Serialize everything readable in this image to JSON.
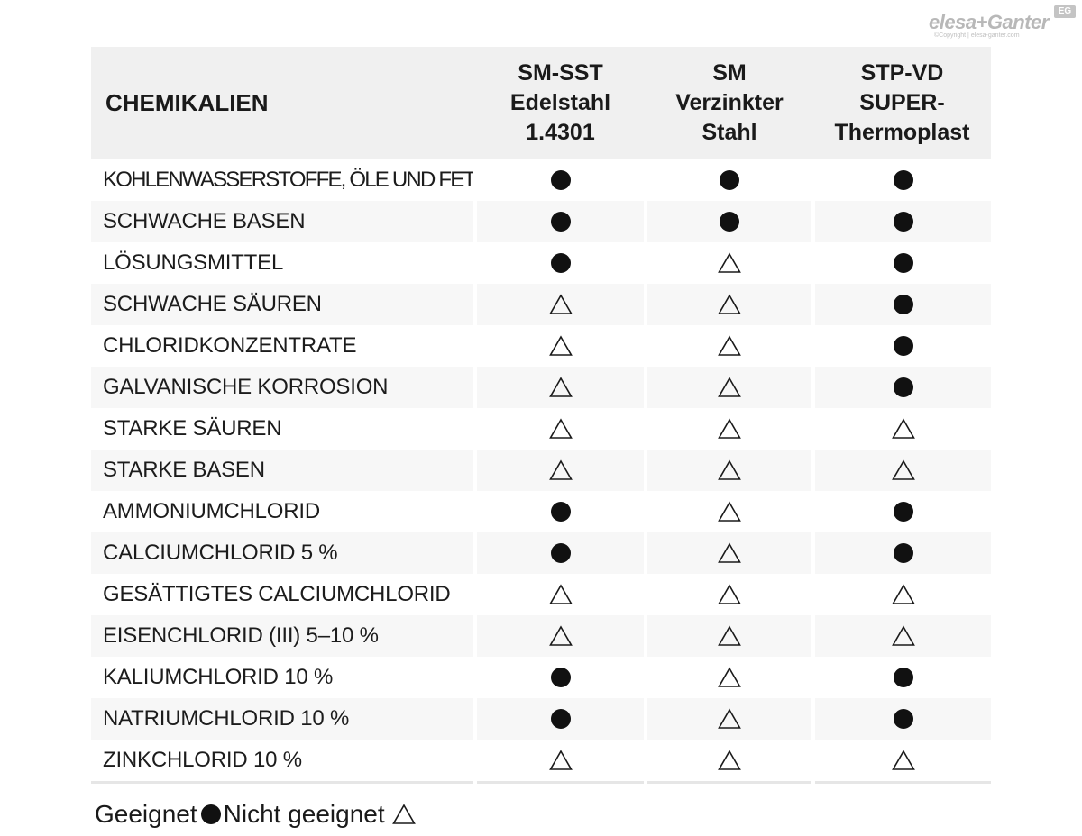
{
  "logo": {
    "brand": "elesa+Ganter",
    "badge": "EG",
    "copyright": "©Copyright | elesa-ganter.com"
  },
  "table": {
    "header": {
      "chemicals": "CHEMIKALIEN",
      "materials": [
        {
          "lines": [
            "SM-SST",
            "Edelstahl",
            "1.4301"
          ]
        },
        {
          "lines": [
            "SM",
            "Verzinkter",
            "Stahl"
          ]
        },
        {
          "lines": [
            "STP-VD",
            "SUPER-",
            "Thermoplast"
          ]
        }
      ]
    },
    "rows": [
      {
        "name": "KOHLENWASSERSTOFFE, ÖLE UND FETTE",
        "values": [
          "suitable",
          "suitable",
          "suitable"
        ]
      },
      {
        "name": "SCHWACHE BASEN",
        "values": [
          "suitable",
          "suitable",
          "suitable"
        ]
      },
      {
        "name": "LÖSUNGSMITTEL",
        "values": [
          "suitable",
          "not_suitable",
          "suitable"
        ]
      },
      {
        "name": "SCHWACHE SÄUREN",
        "values": [
          "not_suitable",
          "not_suitable",
          "suitable"
        ]
      },
      {
        "name": "CHLORIDKONZENTRATE",
        "values": [
          "not_suitable",
          "not_suitable",
          "suitable"
        ]
      },
      {
        "name": "GALVANISCHE KORROSION",
        "values": [
          "not_suitable",
          "not_suitable",
          "suitable"
        ]
      },
      {
        "name": "STARKE SÄUREN",
        "values": [
          "not_suitable",
          "not_suitable",
          "not_suitable"
        ]
      },
      {
        "name": "STARKE BASEN",
        "values": [
          "not_suitable",
          "not_suitable",
          "not_suitable"
        ]
      },
      {
        "name": "AMMONIUMCHLORID",
        "values": [
          "suitable",
          "not_suitable",
          "suitable"
        ]
      },
      {
        "name": "CALCIUMCHLORID 5 %",
        "values": [
          "suitable",
          "not_suitable",
          "suitable"
        ]
      },
      {
        "name": "GESÄTTIGTES CALCIUMCHLORID",
        "values": [
          "not_suitable",
          "not_suitable",
          "not_suitable"
        ]
      },
      {
        "name": "EISENCHLORID (III) 5–10 %",
        "values": [
          "not_suitable",
          "not_suitable",
          "not_suitable"
        ]
      },
      {
        "name": "KALIUMCHLORID 10 %",
        "values": [
          "suitable",
          "not_suitable",
          "suitable"
        ]
      },
      {
        "name": "NATRIUMCHLORID 10 %",
        "values": [
          "suitable",
          "not_suitable",
          "suitable"
        ]
      },
      {
        "name": "ZINKCHLORID 10 %",
        "values": [
          "not_suitable",
          "not_suitable",
          "not_suitable"
        ]
      }
    ]
  },
  "legend": {
    "suitable_label": "Geeignet",
    "not_suitable_label": "Nicht geeignet"
  },
  "icons": {
    "suitable": "filled-circle-icon",
    "not_suitable": "outlined-triangle-icon"
  },
  "colors": {
    "header_bg": "#f0f0f0",
    "stripe_bg": "#f7f7f7",
    "text": "#1a1a1a",
    "symbol": "#111111",
    "logo": "#b8b8b8"
  }
}
